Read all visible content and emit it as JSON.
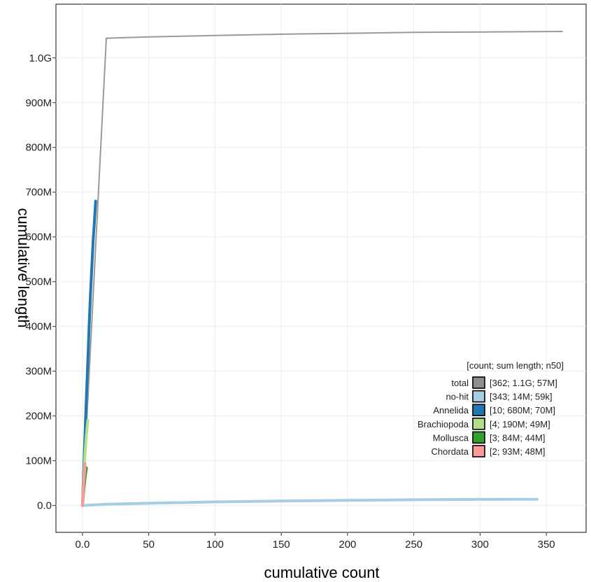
{
  "chart_data": {
    "type": "line",
    "xlabel": "cumulative count",
    "ylabel": "cumulative length",
    "xlim": [
      -20,
      380
    ],
    "ylim": [
      -60000000,
      1120000000
    ],
    "x_ticks": [
      0,
      50,
      100,
      150,
      200,
      250,
      300,
      350
    ],
    "x_tick_labels": [
      "0.0",
      "50",
      "100",
      "150",
      "200",
      "250",
      "300",
      "350"
    ],
    "y_ticks": [
      0,
      100000000,
      200000000,
      300000000,
      400000000,
      500000000,
      600000000,
      700000000,
      800000000,
      900000000,
      1000000000
    ],
    "y_tick_labels": [
      "0.0",
      "100M",
      "200M",
      "300M",
      "400M",
      "500M",
      "600M",
      "700M",
      "800M",
      "900M",
      "1.0G"
    ],
    "grid": true,
    "legend": {
      "title": "[count; sum length; n50]",
      "position": "bottom-right",
      "entries": [
        {
          "name": "total",
          "info": "[362; 1.1G; 57M]",
          "color": "#8e8e8e"
        },
        {
          "name": "no-hit",
          "info": "[343; 14M; 59k]",
          "color": "#a6cee3"
        },
        {
          "name": "Annelida",
          "info": "[10; 680M; 70M]",
          "color": "#1f78b4"
        },
        {
          "name": "Brachiopoda",
          "info": "[4; 190M; 49M]",
          "color": "#b2df8a"
        },
        {
          "name": "Mollusca",
          "info": "[3; 84M; 44M]",
          "color": "#33a02c"
        },
        {
          "name": "Chordata",
          "info": "[2; 93M; 48M]",
          "color": "#fb9a99"
        }
      ]
    },
    "series": [
      {
        "name": "total",
        "color": "#999999",
        "width": 2,
        "x": [
          0,
          18,
          50,
          100,
          150,
          200,
          250,
          300,
          362
        ],
        "y": [
          0,
          1044000000,
          1047000000,
          1050000000,
          1053000000,
          1055000000,
          1057000000,
          1058000000,
          1059000000
        ]
      },
      {
        "name": "no-hit",
        "color": "#a6cee3",
        "width": 4,
        "x": [
          0,
          20,
          50,
          100,
          150,
          200,
          250,
          300,
          343
        ],
        "y": [
          0,
          3000000,
          5000000,
          8000000,
          10000000,
          11500000,
          12800000,
          13600000,
          14000000
        ]
      },
      {
        "name": "Annelida",
        "color": "#1f78b4",
        "width": 4,
        "x": [
          0,
          1,
          2,
          3,
          4,
          5,
          6,
          7,
          8,
          9,
          10
        ],
        "y": [
          0,
          85000000,
          165000000,
          245000000,
          320000000,
          400000000,
          470000000,
          530000000,
          590000000,
          635000000,
          680000000
        ]
      },
      {
        "name": "Brachiopoda",
        "color": "#b2df8a",
        "width": 4,
        "x": [
          0,
          1,
          2,
          3,
          4
        ],
        "y": [
          0,
          60000000,
          120000000,
          160000000,
          190000000
        ]
      },
      {
        "name": "Mollusca",
        "color": "#33a02c",
        "width": 4,
        "x": [
          0,
          1,
          2,
          3
        ],
        "y": [
          0,
          35000000,
          62000000,
          84000000
        ]
      },
      {
        "name": "Chordata",
        "color": "#fb9a99",
        "width": 4,
        "x": [
          0,
          1,
          2
        ],
        "y": [
          0,
          50000000,
          93000000
        ]
      }
    ]
  }
}
